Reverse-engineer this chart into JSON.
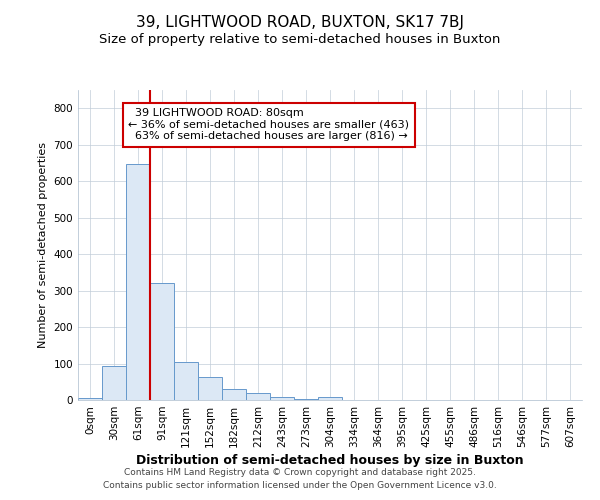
{
  "title1": "39, LIGHTWOOD ROAD, BUXTON, SK17 7BJ",
  "title2": "Size of property relative to semi-detached houses in Buxton",
  "xlabel": "Distribution of semi-detached houses by size in Buxton",
  "ylabel": "Number of semi-detached properties",
  "categories": [
    "0sqm",
    "30sqm",
    "61sqm",
    "91sqm",
    "121sqm",
    "152sqm",
    "182sqm",
    "212sqm",
    "243sqm",
    "273sqm",
    "304sqm",
    "334sqm",
    "364sqm",
    "395sqm",
    "425sqm",
    "455sqm",
    "486sqm",
    "516sqm",
    "546sqm",
    "577sqm",
    "607sqm"
  ],
  "values": [
    5,
    93,
    648,
    320,
    105,
    63,
    30,
    18,
    8,
    2,
    8,
    1,
    0,
    0,
    0,
    0,
    0,
    0,
    0,
    0,
    0
  ],
  "bar_color": "#dce8f5",
  "bar_edge_color": "#6699cc",
  "property_line_x": 3,
  "property_line_color": "#cc0000",
  "annotation_text": "  39 LIGHTWOOD ROAD: 80sqm  \n← 36% of semi-detached houses are smaller (463)\n  63% of semi-detached houses are larger (816) →",
  "annotation_box_facecolor": "#ffffff",
  "annotation_box_edgecolor": "#cc0000",
  "ylim": [
    0,
    850
  ],
  "yticks": [
    0,
    100,
    200,
    300,
    400,
    500,
    600,
    700,
    800
  ],
  "footer_text1": "Contains HM Land Registry data © Crown copyright and database right 2025.",
  "footer_text2": "Contains public sector information licensed under the Open Government Licence v3.0.",
  "fig_background_color": "#ffffff",
  "plot_background_color": "#ffffff",
  "title1_fontsize": 11,
  "title2_fontsize": 9.5,
  "xlabel_fontsize": 9,
  "ylabel_fontsize": 8,
  "tick_fontsize": 7.5,
  "footer_fontsize": 6.5,
  "annotation_fontsize": 8,
  "grid_color": "#c0ccd8",
  "grid_alpha": 0.8
}
